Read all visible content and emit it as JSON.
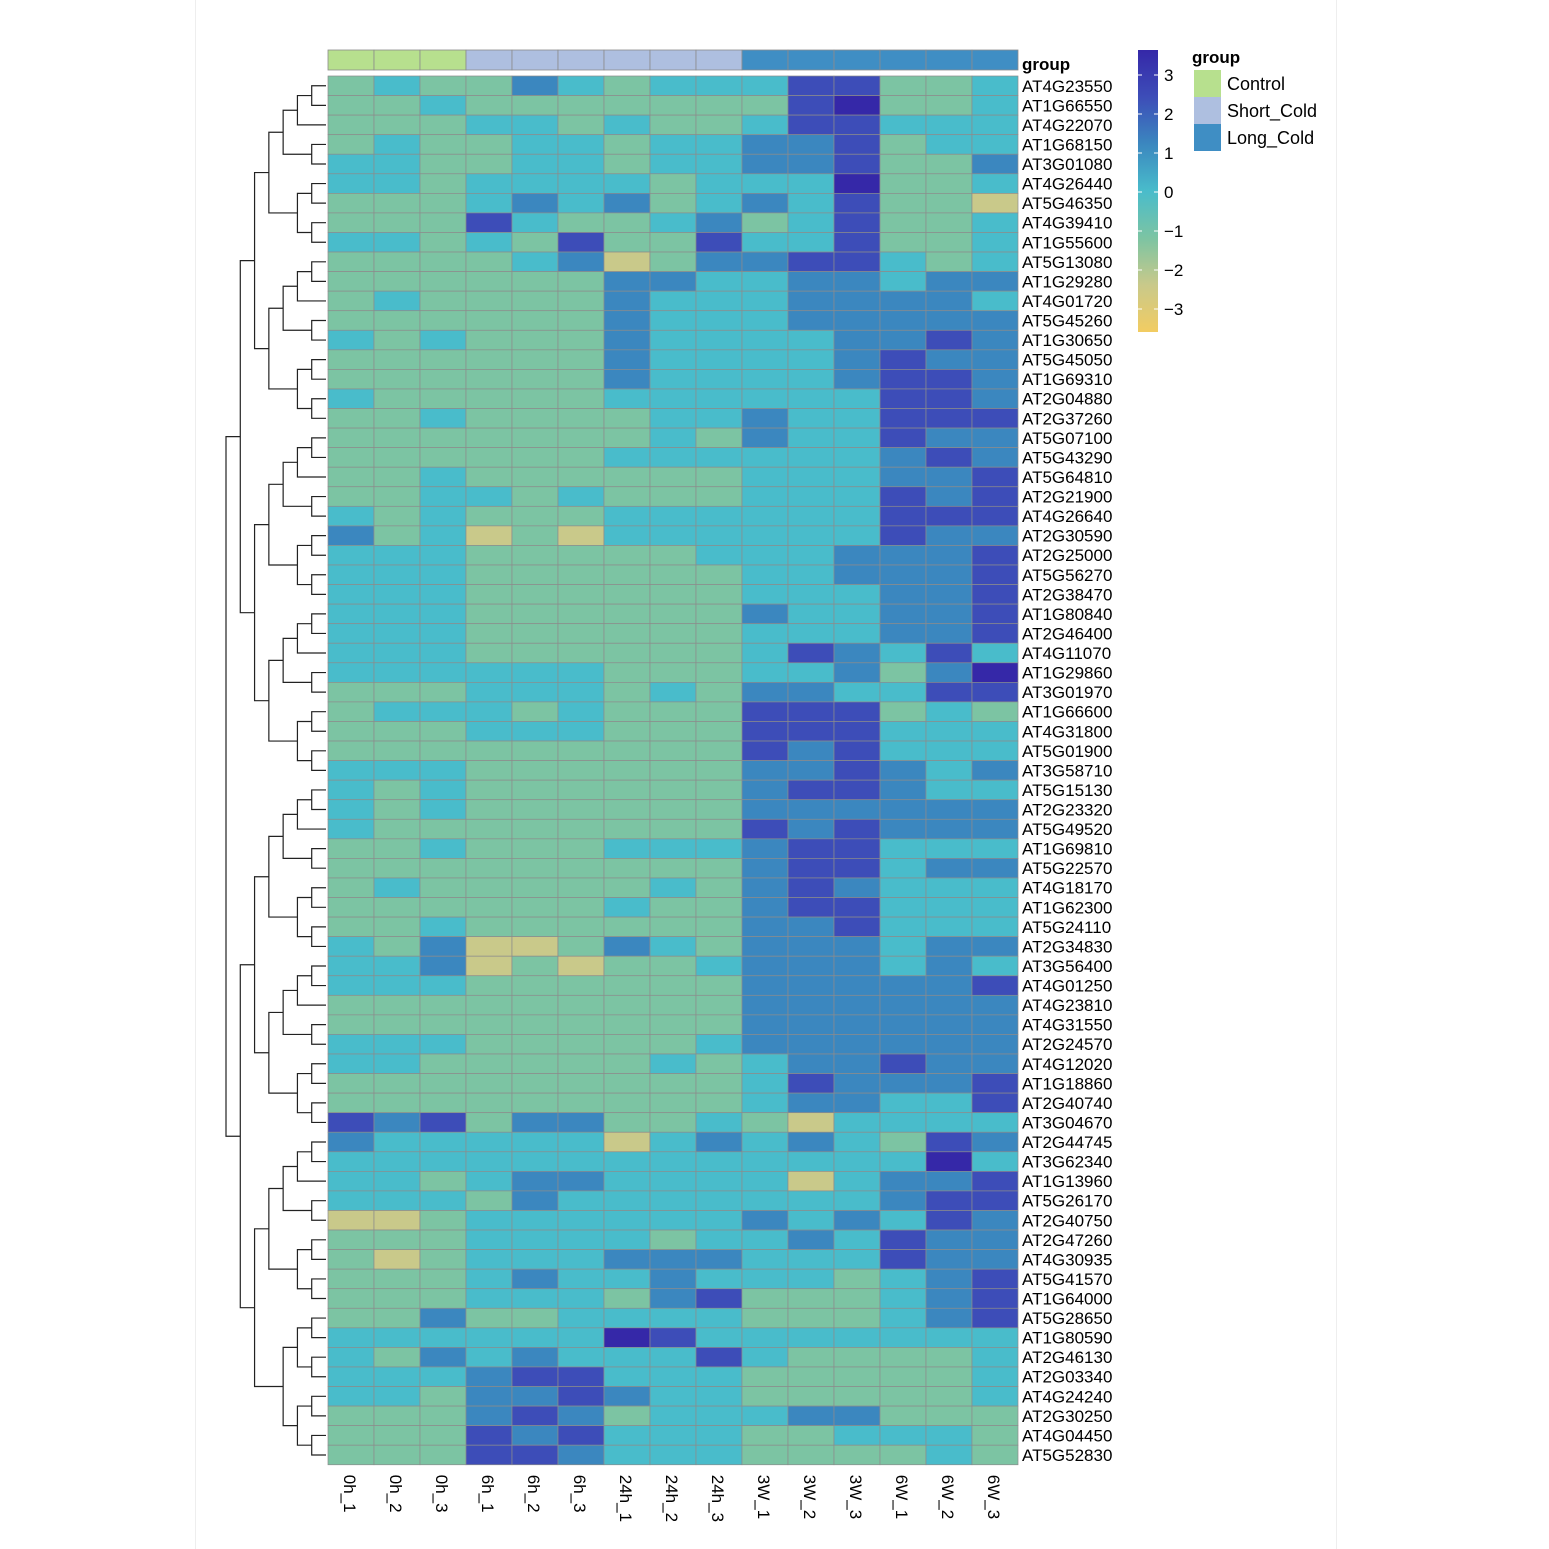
{
  "chart_data": {
    "type": "heatmap",
    "title": "",
    "annotation_title": "group",
    "legend_title": "group",
    "groups": [
      {
        "name": "Control",
        "color": "#b7e08e"
      },
      {
        "name": "Short_Cold",
        "color": "#aebfe0"
      },
      {
        "name": "Long_Cold",
        "color": "#3f8ec4"
      }
    ],
    "column_groups": [
      0,
      0,
      0,
      1,
      1,
      1,
      1,
      1,
      1,
      2,
      2,
      2,
      2,
      2,
      2
    ],
    "columns": [
      "0h_1",
      "0h_2",
      "0h_3",
      "6h_1",
      "6h_2",
      "6h_3",
      "24h_1",
      "24h_2",
      "24h_3",
      "3W_1",
      "3W_2",
      "3W_3",
      "6W_1",
      "6W_2",
      "6W_3"
    ],
    "rows": [
      "AT4G23550",
      "AT1G66550",
      "AT4G22070",
      "AT1G68150",
      "AT3G01080",
      "AT4G26440",
      "AT5G46350",
      "AT4G39410",
      "AT1G55600",
      "AT5G13080",
      "AT1G29280",
      "AT4G01720",
      "AT5G45260",
      "AT1G30650",
      "AT5G45050",
      "AT1G69310",
      "AT2G04880",
      "AT2G37260",
      "AT5G07100",
      "AT5G43290",
      "AT5G64810",
      "AT2G21900",
      "AT4G26640",
      "AT2G30590",
      "AT2G25000",
      "AT5G56270",
      "AT2G38470",
      "AT1G80840",
      "AT2G46400",
      "AT4G11070",
      "AT1G29860",
      "AT3G01970",
      "AT1G66600",
      "AT4G31800",
      "AT5G01900",
      "AT3G58710",
      "AT5G15130",
      "AT2G23320",
      "AT5G49520",
      "AT1G69810",
      "AT5G22570",
      "AT4G18170",
      "AT1G62300",
      "AT5G24110",
      "AT2G34830",
      "AT3G56400",
      "AT4G01250",
      "AT4G23810",
      "AT4G31550",
      "AT2G24570",
      "AT4G12020",
      "AT1G18860",
      "AT2G40740",
      "AT3G04670",
      "AT2G44745",
      "AT3G62340",
      "AT1G13960",
      "AT5G26170",
      "AT2G40750",
      "AT2G47260",
      "AT4G30935",
      "AT5G41570",
      "AT1G64000",
      "AT5G28650",
      "AT1G80590",
      "AT2G46130",
      "AT2G03340",
      "AT4G24240",
      "AT2G30250",
      "AT4G04450",
      "AT5G52830"
    ],
    "values": [
      [
        -1,
        0,
        -1,
        -1,
        1,
        0,
        -1,
        0,
        0,
        0,
        2,
        2,
        -1,
        -1,
        0
      ],
      [
        -1,
        -1,
        0,
        -1,
        -1,
        -1,
        -1,
        -1,
        -1,
        -1,
        2,
        3,
        -1,
        -1,
        0
      ],
      [
        -1,
        -1,
        -1,
        0,
        0,
        -1,
        0,
        -1,
        -1,
        0,
        2,
        2,
        0,
        0,
        0
      ],
      [
        -1,
        0,
        -1,
        -1,
        0,
        0,
        -1,
        0,
        0,
        1,
        1,
        2,
        -1,
        0,
        0
      ],
      [
        0,
        0,
        -1,
        -1,
        0,
        0,
        -1,
        0,
        0,
        1,
        1,
        2,
        -1,
        -1,
        1
      ],
      [
        0,
        0,
        -1,
        0,
        0,
        0,
        0,
        -1,
        0,
        0,
        0,
        3,
        -1,
        -1,
        0
      ],
      [
        -1,
        -1,
        -1,
        0,
        1,
        0,
        1,
        -1,
        0,
        1,
        0,
        2,
        -1,
        -1,
        -2
      ],
      [
        -1,
        -1,
        -1,
        2,
        0,
        -1,
        -1,
        0,
        1,
        -1,
        0,
        2,
        -1,
        -1,
        0
      ],
      [
        0,
        0,
        -1,
        0,
        -1,
        2,
        -1,
        -1,
        2,
        0,
        0,
        2,
        -1,
        -1,
        0
      ],
      [
        -1,
        -1,
        -1,
        -1,
        0,
        1,
        -2,
        -1,
        1,
        1,
        2,
        2,
        0,
        -1,
        0
      ],
      [
        -1,
        -1,
        -1,
        -1,
        -1,
        -1,
        1,
        1,
        0,
        0,
        1,
        1,
        0,
        1,
        1
      ],
      [
        -1,
        0,
        -1,
        -1,
        -1,
        -1,
        1,
        0,
        0,
        0,
        1,
        1,
        1,
        1,
        0
      ],
      [
        -1,
        -1,
        -1,
        -1,
        -1,
        -1,
        1,
        0,
        0,
        0,
        1,
        1,
        1,
        1,
        1
      ],
      [
        0,
        -1,
        0,
        -1,
        -1,
        -1,
        1,
        0,
        0,
        0,
        0,
        1,
        1,
        2,
        1
      ],
      [
        -1,
        -1,
        -1,
        -1,
        -1,
        -1,
        1,
        0,
        0,
        0,
        0,
        1,
        2,
        1,
        1
      ],
      [
        -1,
        -1,
        -1,
        -1,
        -1,
        -1,
        1,
        0,
        0,
        0,
        0,
        1,
        2,
        2,
        1
      ],
      [
        0,
        -1,
        -1,
        -1,
        -1,
        -1,
        0,
        0,
        0,
        0,
        0,
        0,
        2,
        2,
        1
      ],
      [
        -1,
        -1,
        0,
        -1,
        -1,
        -1,
        -1,
        0,
        0,
        1,
        0,
        0,
        2,
        2,
        2
      ],
      [
        -1,
        -1,
        -1,
        -1,
        -1,
        -1,
        -1,
        0,
        -1,
        1,
        0,
        0,
        2,
        1,
        1
      ],
      [
        -1,
        -1,
        -1,
        -1,
        -1,
        -1,
        0,
        0,
        0,
        0,
        0,
        0,
        1,
        2,
        1
      ],
      [
        -1,
        -1,
        0,
        -1,
        -1,
        -1,
        -1,
        -1,
        -1,
        0,
        0,
        0,
        1,
        1,
        2
      ],
      [
        -1,
        -1,
        0,
        0,
        -1,
        0,
        -1,
        -1,
        -1,
        0,
        0,
        0,
        2,
        1,
        2
      ],
      [
        0,
        -1,
        0,
        -1,
        -1,
        -1,
        0,
        0,
        0,
        0,
        0,
        0,
        2,
        2,
        2
      ],
      [
        1,
        -1,
        0,
        -2,
        -1,
        -2,
        0,
        0,
        0,
        0,
        0,
        0,
        2,
        1,
        1
      ],
      [
        0,
        0,
        0,
        -1,
        -1,
        -1,
        -1,
        -1,
        0,
        0,
        0,
        1,
        1,
        1,
        2
      ],
      [
        0,
        0,
        0,
        -1,
        -1,
        -1,
        -1,
        -1,
        -1,
        0,
        0,
        1,
        1,
        1,
        2
      ],
      [
        0,
        0,
        0,
        -1,
        -1,
        -1,
        -1,
        -1,
        -1,
        0,
        0,
        0,
        1,
        1,
        2
      ],
      [
        0,
        0,
        0,
        -1,
        -1,
        -1,
        -1,
        -1,
        -1,
        1,
        0,
        0,
        1,
        1,
        2
      ],
      [
        0,
        0,
        0,
        -1,
        -1,
        -1,
        -1,
        -1,
        -1,
        0,
        0,
        0,
        1,
        1,
        2
      ],
      [
        0,
        0,
        0,
        -1,
        -1,
        -1,
        -1,
        -1,
        -1,
        0,
        2,
        1,
        0,
        2,
        0
      ],
      [
        0,
        0,
        0,
        0,
        0,
        0,
        -1,
        -1,
        -1,
        0,
        0,
        1,
        -1,
        1,
        3
      ],
      [
        -1,
        -1,
        -1,
        0,
        0,
        0,
        -1,
        0,
        -1,
        1,
        1,
        0,
        0,
        2,
        2
      ],
      [
        -1,
        0,
        0,
        0,
        -1,
        0,
        -1,
        -1,
        -1,
        2,
        2,
        2,
        -1,
        0,
        -1
      ],
      [
        -1,
        -1,
        -1,
        0,
        0,
        0,
        -1,
        -1,
        -1,
        2,
        2,
        2,
        0,
        0,
        0
      ],
      [
        -1,
        -1,
        -1,
        -1,
        -1,
        -1,
        -1,
        -1,
        -1,
        2,
        1,
        2,
        0,
        0,
        0
      ],
      [
        0,
        0,
        0,
        -1,
        -1,
        -1,
        -1,
        -1,
        -1,
        1,
        1,
        2,
        1,
        0,
        1
      ],
      [
        0,
        -1,
        0,
        -1,
        -1,
        -1,
        -1,
        -1,
        -1,
        1,
        2,
        2,
        1,
        0,
        0
      ],
      [
        0,
        -1,
        0,
        -1,
        -1,
        -1,
        -1,
        -1,
        -1,
        1,
        1,
        1,
        1,
        1,
        1
      ],
      [
        0,
        -1,
        -1,
        -1,
        -1,
        -1,
        -1,
        -1,
        -1,
        2,
        1,
        2,
        1,
        1,
        1
      ],
      [
        -1,
        -1,
        0,
        -1,
        -1,
        -1,
        0,
        0,
        0,
        1,
        2,
        2,
        0,
        0,
        0
      ],
      [
        -1,
        -1,
        -1,
        -1,
        -1,
        -1,
        -1,
        -1,
        -1,
        1,
        2,
        2,
        0,
        1,
        1
      ],
      [
        -1,
        0,
        -1,
        -1,
        -1,
        -1,
        -1,
        0,
        -1,
        1,
        2,
        1,
        0,
        0,
        0
      ],
      [
        -1,
        -1,
        -1,
        -1,
        -1,
        -1,
        0,
        -1,
        -1,
        1,
        2,
        2,
        0,
        0,
        0
      ],
      [
        -1,
        -1,
        0,
        -1,
        -1,
        -1,
        -1,
        -1,
        -1,
        1,
        1,
        2,
        0,
        0,
        0
      ],
      [
        0,
        -1,
        1,
        -2,
        -2,
        -1,
        1,
        0,
        -1,
        1,
        1,
        1,
        0,
        1,
        1
      ],
      [
        0,
        0,
        1,
        -2,
        -1,
        -2,
        -1,
        -1,
        0,
        1,
        1,
        1,
        0,
        1,
        0
      ],
      [
        0,
        0,
        0,
        -1,
        -1,
        -1,
        -1,
        -1,
        -1,
        1,
        1,
        1,
        1,
        1,
        2
      ],
      [
        -1,
        -1,
        -1,
        -1,
        -1,
        -1,
        -1,
        -1,
        -1,
        1,
        1,
        1,
        1,
        1,
        1
      ],
      [
        -1,
        -1,
        -1,
        -1,
        -1,
        -1,
        -1,
        -1,
        -1,
        1,
        1,
        1,
        1,
        1,
        1
      ],
      [
        0,
        0,
        0,
        -1,
        -1,
        -1,
        -1,
        -1,
        0,
        1,
        1,
        1,
        1,
        1,
        1
      ],
      [
        0,
        0,
        -1,
        -1,
        -1,
        -1,
        -1,
        0,
        -1,
        0,
        1,
        1,
        2,
        1,
        1
      ],
      [
        -1,
        -1,
        -1,
        -1,
        -1,
        -1,
        -1,
        -1,
        -1,
        0,
        2,
        1,
        1,
        1,
        2
      ],
      [
        -1,
        -1,
        -1,
        -1,
        -1,
        -1,
        -1,
        -1,
        -1,
        0,
        1,
        1,
        0,
        0,
        2
      ],
      [
        2,
        1,
        2,
        -1,
        1,
        1,
        -1,
        -1,
        0,
        -1,
        -2,
        0,
        0,
        0,
        0
      ],
      [
        1,
        0,
        0,
        0,
        0,
        0,
        -2,
        0,
        1,
        0,
        1,
        0,
        -1,
        2,
        1
      ],
      [
        0,
        0,
        0,
        0,
        0,
        0,
        0,
        0,
        0,
        0,
        0,
        0,
        0,
        3,
        0
      ],
      [
        0,
        0,
        -1,
        0,
        1,
        1,
        0,
        0,
        0,
        0,
        -2,
        0,
        1,
        1,
        2
      ],
      [
        0,
        0,
        0,
        -1,
        1,
        0,
        0,
        0,
        0,
        0,
        0,
        0,
        1,
        2,
        2
      ],
      [
        -2,
        -2,
        -1,
        0,
        0,
        0,
        0,
        0,
        0,
        1,
        0,
        1,
        0,
        2,
        1
      ],
      [
        -1,
        -1,
        -1,
        0,
        0,
        0,
        0,
        -1,
        0,
        0,
        1,
        0,
        2,
        1,
        1
      ],
      [
        -1,
        -2,
        -1,
        0,
        0,
        0,
        1,
        1,
        1,
        0,
        0,
        0,
        2,
        1,
        1
      ],
      [
        -1,
        -1,
        -1,
        0,
        1,
        0,
        0,
        1,
        0,
        0,
        0,
        -1,
        0,
        1,
        2
      ],
      [
        -1,
        -1,
        -1,
        0,
        0,
        0,
        -1,
        1,
        2,
        -1,
        -1,
        -1,
        0,
        1,
        2
      ],
      [
        -1,
        -1,
        1,
        -1,
        -1,
        0,
        0,
        0,
        0,
        -1,
        -1,
        -1,
        0,
        1,
        2
      ],
      [
        0,
        0,
        0,
        0,
        0,
        0,
        3,
        2,
        0,
        0,
        0,
        0,
        0,
        0,
        0
      ],
      [
        0,
        -1,
        1,
        0,
        1,
        0,
        0,
        0,
        2,
        0,
        -1,
        -1,
        -1,
        -1,
        0
      ],
      [
        0,
        0,
        0,
        1,
        2,
        2,
        0,
        0,
        0,
        -1,
        -1,
        -1,
        -1,
        -1,
        0
      ],
      [
        0,
        0,
        -1,
        1,
        1,
        2,
        1,
        0,
        0,
        -1,
        -1,
        -1,
        -1,
        -1,
        0
      ],
      [
        -1,
        -1,
        -1,
        1,
        2,
        1,
        -1,
        0,
        0,
        0,
        1,
        1,
        -1,
        -1,
        -1
      ],
      [
        -1,
        -1,
        -1,
        2,
        1,
        2,
        0,
        0,
        0,
        -1,
        -1,
        0,
        0,
        0,
        -1
      ],
      [
        -1,
        -1,
        -1,
        2,
        2,
        1,
        0,
        0,
        0,
        -1,
        -1,
        -1,
        -1,
        0,
        -1
      ]
    ],
    "color_scale": {
      "ticks": [
        3,
        2,
        1,
        0,
        -1,
        -2,
        -3
      ],
      "stops": [
        {
          "value": 3,
          "color": "#3528a8"
        },
        {
          "value": 2,
          "color": "#3d4db8"
        },
        {
          "value": 1,
          "color": "#3b87bf"
        },
        {
          "value": 0,
          "color": "#49bccb"
        },
        {
          "value": -1,
          "color": "#7cc4a3"
        },
        {
          "value": -2,
          "color": "#c9c98a"
        },
        {
          "value": -3,
          "color": "#f2cc62"
        }
      ]
    },
    "cell_border_color": "#8c8c8c",
    "row_dendrogram": true,
    "column_dendrogram": false
  }
}
